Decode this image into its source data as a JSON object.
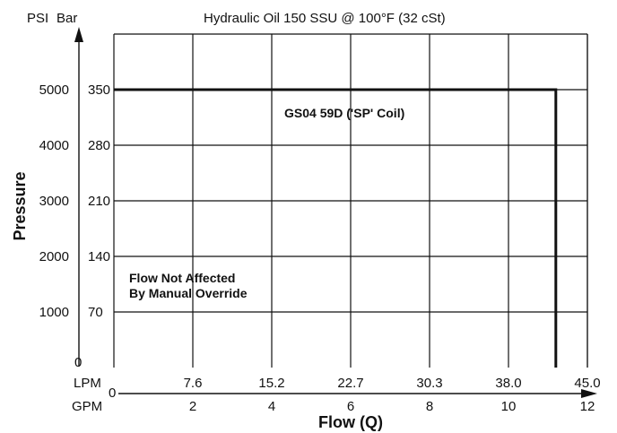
{
  "chart_data": {
    "type": "line",
    "title": "",
    "subtitle": "Hydraulic Oil 150 SSU @ 100°F (32 cSt)",
    "ylabel": "Pressure",
    "xlabel": "Flow (Q)",
    "y_unit_labels": {
      "psi": "PSI",
      "bar": "Bar"
    },
    "x_unit_labels": {
      "lpm": "LPM",
      "gpm": "GPM"
    },
    "y_ticks": [
      {
        "psi": "5000",
        "bar": "350",
        "v": 5000
      },
      {
        "psi": "4000",
        "bar": "280",
        "v": 4000
      },
      {
        "psi": "3000",
        "bar": "210",
        "v": 3000
      },
      {
        "psi": "2000",
        "bar": "140",
        "v": 2000
      },
      {
        "psi": "1000",
        "bar": "70",
        "v": 1000
      }
    ],
    "y_zero_label": "0",
    "x_ticks": [
      {
        "lpm": "7.6",
        "gpm": "2",
        "v": 2
      },
      {
        "lpm": "15.2",
        "gpm": "4",
        "v": 4
      },
      {
        "lpm": "22.7",
        "gpm": "6",
        "v": 6
      },
      {
        "lpm": "30.3",
        "gpm": "8",
        "v": 8
      },
      {
        "lpm": "38.0",
        "gpm": "10",
        "v": 10
      },
      {
        "lpm": "45.0",
        "gpm": "12",
        "v": 12
      }
    ],
    "x_zero_label": "0",
    "xlim": [
      0,
      12
    ],
    "ylim": [
      0,
      6000
    ],
    "grid": true,
    "series": [
      {
        "name": "GS04 59D ('SP' Coil)",
        "x": [
          0,
          11.2,
          11.2
        ],
        "y": [
          5000,
          5000,
          0
        ]
      }
    ],
    "annotations": [
      {
        "line1": "Flow Not Affected",
        "line2": "By Manual Override"
      }
    ],
    "colors": {
      "line": "#111111",
      "grid": "#111111"
    }
  }
}
